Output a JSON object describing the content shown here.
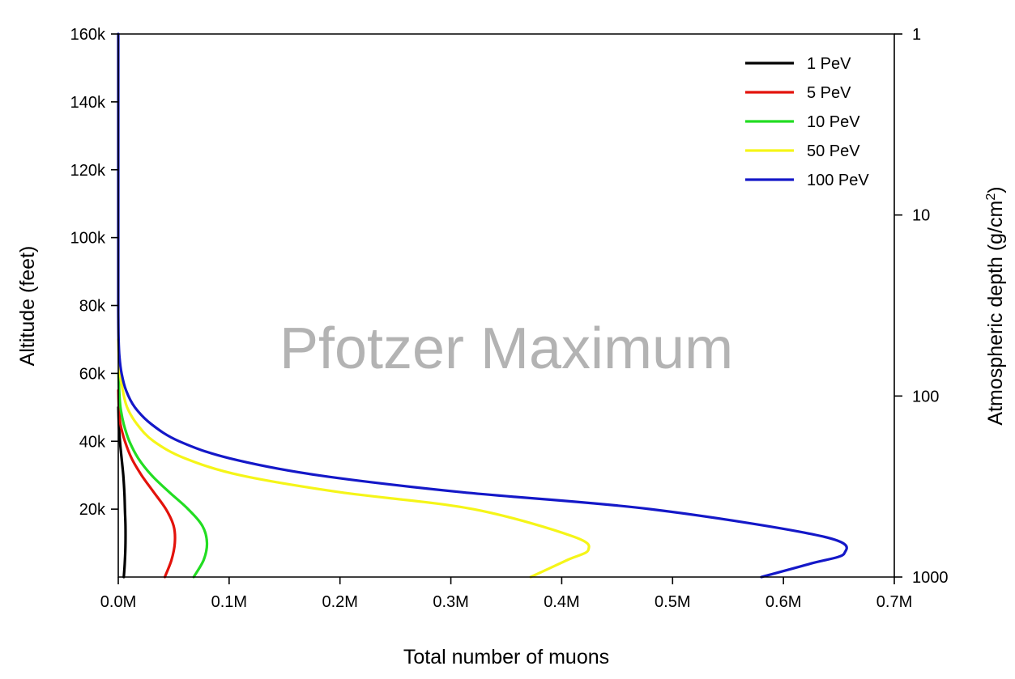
{
  "chart_data": {
    "type": "line",
    "annotation": "Pfotzer Maximum",
    "xlabel": "Total number of muons",
    "ylabel": "Altitude (feet)",
    "y2label_main": "Atmospheric depth (g/cm",
    "y2label_sup": "2",
    "y2label_tail": ")",
    "xlim": [
      0,
      0.7
    ],
    "ylim": [
      0,
      160
    ],
    "xticks": [
      0,
      0.1,
      0.2,
      0.3,
      0.4,
      0.5,
      0.6,
      0.7
    ],
    "xtick_labels": [
      "0.0M",
      "0.1M",
      "0.2M",
      "0.3M",
      "0.4M",
      "0.5M",
      "0.6M",
      "0.7M"
    ],
    "yticks": [
      20,
      40,
      60,
      80,
      100,
      120,
      140,
      160
    ],
    "ytick_labels": [
      "20k",
      "40k",
      "60k",
      "80k",
      "100k",
      "120k",
      "140k",
      "160k"
    ],
    "y2_scale": "log",
    "y2_ticks": [
      1,
      10,
      100,
      1000
    ],
    "y2_tick_labels": [
      "1",
      "10",
      "100",
      "1000"
    ],
    "y2_at_top": 1,
    "y2_at_bottom": 1000,
    "grid": false,
    "legend_position": "top-right",
    "series": [
      {
        "name": "1 PeV",
        "color": "#000000",
        "x": [
          0.005,
          0.006,
          0.0065,
          0.0065,
          0.006,
          0.0055,
          0.0045,
          0.003,
          0.0015,
          0.0005,
          0.0001
        ],
        "y": [
          0,
          5,
          10,
          15,
          20,
          25,
          30,
          35,
          40,
          45,
          50
        ]
      },
      {
        "name": "5 PeV",
        "color": "#e3120b",
        "x": [
          0.042,
          0.048,
          0.051,
          0.05,
          0.043,
          0.032,
          0.021,
          0.012,
          0.006,
          0.002,
          0.0005,
          0.0001
        ],
        "y": [
          0,
          5,
          10,
          15,
          20,
          25,
          30,
          35,
          40,
          45,
          50,
          55
        ]
      },
      {
        "name": "10 PeV",
        "color": "#22dd22",
        "x": [
          0.068,
          0.077,
          0.08,
          0.076,
          0.063,
          0.046,
          0.03,
          0.018,
          0.01,
          0.005,
          0.002,
          0.0008,
          0.0002
        ],
        "y": [
          0,
          5,
          10,
          15,
          20,
          25,
          30,
          35,
          40,
          45,
          50,
          55,
          60
        ]
      },
      {
        "name": "50 PeV",
        "color": "#f5f518",
        "x": [
          0.372,
          0.405,
          0.424,
          0.41,
          0.32,
          0.2,
          0.11,
          0.06,
          0.032,
          0.017,
          0.008,
          0.004,
          0.0015,
          0.0005,
          0.0001
        ],
        "y": [
          0,
          5,
          8,
          12,
          20,
          25,
          30,
          35,
          40,
          45,
          50,
          55,
          60,
          65,
          70
        ]
      },
      {
        "name": "100 PeV",
        "color": "#1418c8",
        "x": [
          0.58,
          0.625,
          0.655,
          0.635,
          0.48,
          0.31,
          0.18,
          0.1,
          0.055,
          0.03,
          0.015,
          0.007,
          0.003,
          0.001,
          0.0003,
          0.0001,
          0.0,
          0.0,
          0.0,
          0.0
        ],
        "y": [
          0,
          4,
          7,
          12,
          20,
          25,
          30,
          35,
          40,
          45,
          50,
          55,
          60,
          65,
          70,
          75,
          80,
          100,
          130,
          160
        ]
      }
    ]
  }
}
